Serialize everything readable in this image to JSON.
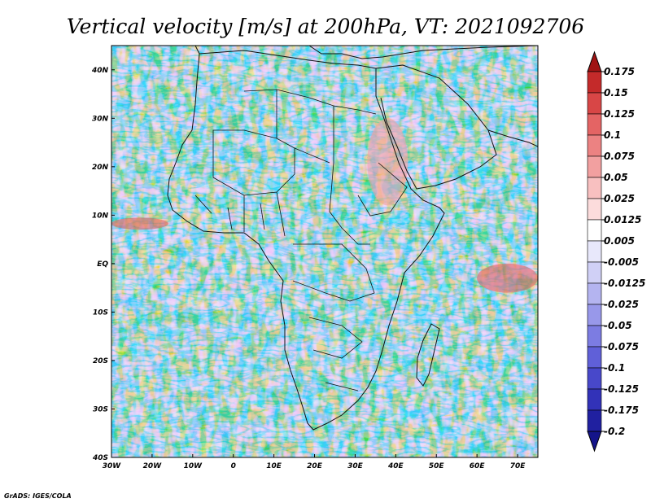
{
  "chart_data": {
    "type": "heatmap",
    "title": "Vertical velocity [m/s] at 200hPa, VT: 2021092706",
    "variable": "Vertical velocity",
    "units": "m/s",
    "level": "200hPa",
    "valid_time": "2021092706",
    "x_ticks": [
      "30W",
      "20W",
      "10W",
      "0",
      "10E",
      "20E",
      "30E",
      "40E",
      "50E",
      "60E",
      "70E"
    ],
    "x_values": [
      -30,
      -20,
      -10,
      0,
      10,
      20,
      30,
      40,
      50,
      60,
      70
    ],
    "xlim": [
      -30,
      75
    ],
    "y_ticks": [
      "40N",
      "30N",
      "20N",
      "10N",
      "EQ",
      "10S",
      "20S",
      "30S",
      "40S"
    ],
    "y_values": [
      40,
      30,
      20,
      10,
      0,
      -10,
      -20,
      -30,
      -40
    ],
    "ylim": [
      -40,
      45
    ],
    "colorbar": {
      "labels": [
        "0.175",
        "0.15",
        "0.125",
        "0.1",
        "0.075",
        "0.05",
        "0.025",
        "0.0125",
        "0.005",
        "-0.005",
        "-0.0125",
        "-0.025",
        "-0.05",
        "-0.075",
        "-0.1",
        "-0.125",
        "-0.175",
        "-0.2"
      ],
      "colors": [
        "#a01414",
        "#c42a2a",
        "#d84646",
        "#e46464",
        "#ec8282",
        "#f2a0a0",
        "#f8c0c0",
        "#fcdcdc",
        "#ffffff",
        "#e8e8fb",
        "#d0d0f6",
        "#b4b4f0",
        "#9898ea",
        "#7c7ce2",
        "#6060d8",
        "#4848ca",
        "#3232b8",
        "#2020a0",
        "#14148a"
      ]
    },
    "regions": [
      {
        "name": "itcz-west-atlantic",
        "lon": [
          -30,
          -16
        ],
        "lat": [
          7,
          9.5
        ],
        "value": 0.12
      },
      {
        "name": "red-sea",
        "lon": [
          33,
          43
        ],
        "lat": [
          12,
          30
        ],
        "value": 0.05
      },
      {
        "name": "east-indian-ocean",
        "lon": [
          60,
          75
        ],
        "lat": [
          -6,
          0
        ],
        "value": 0.1
      }
    ]
  },
  "credit": "GrADS: IGES/COLA"
}
